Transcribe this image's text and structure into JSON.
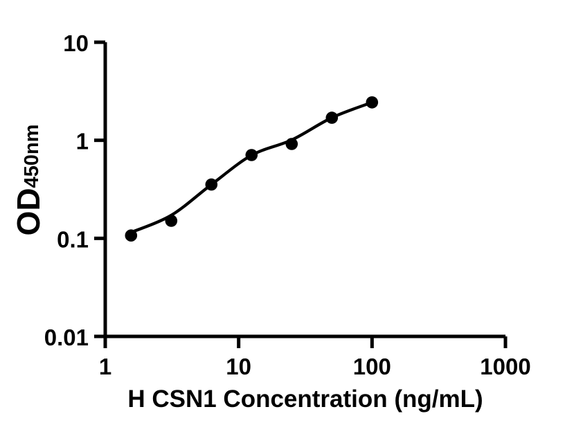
{
  "figure": {
    "background": "#ffffff",
    "ink_color": "#000000"
  },
  "chart_data": {
    "type": "scatter",
    "title": "",
    "xlabel": "H CSN1 Concentration (ng/mL)",
    "ylabel_main": "OD",
    "ylabel_subscript": "450nm",
    "x_scale": "log",
    "y_scale": "log",
    "xlim": [
      1,
      1000
    ],
    "ylim": [
      0.01,
      10
    ],
    "grid": false,
    "legend": false,
    "x_ticks": [
      {
        "value": 1,
        "label": "1"
      },
      {
        "value": 10,
        "label": "10"
      },
      {
        "value": 100,
        "label": "100"
      },
      {
        "value": 1000,
        "label": "1000"
      }
    ],
    "y_ticks": [
      {
        "value": 10,
        "label": "10"
      },
      {
        "value": 1,
        "label": "1"
      },
      {
        "value": 0.1,
        "label": "0.1"
      },
      {
        "value": 0.01,
        "label": "0.01"
      }
    ],
    "series": [
      {
        "marker": "filled-circle",
        "color": "#000000",
        "x": [
          1.5625,
          3.125,
          6.25,
          12.5,
          25,
          50,
          100
        ],
        "od": [
          0.107,
          0.151,
          0.354,
          0.707,
          0.917,
          1.698,
          2.437
        ]
      }
    ],
    "fit_curve": {
      "color": "#000000",
      "x": [
        1.5625,
        3.125,
        6.25,
        12.5,
        25,
        50,
        100
      ],
      "od": [
        0.115,
        0.172,
        0.354,
        0.703,
        1.008,
        1.7,
        2.437
      ]
    }
  }
}
